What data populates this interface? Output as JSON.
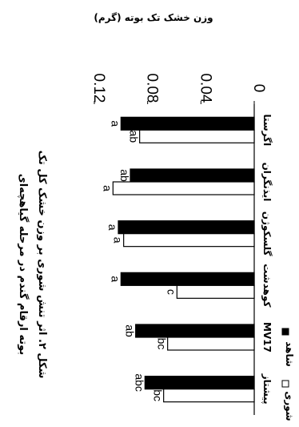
{
  "figure": {
    "caption_line1": "شکل ۲. اثر تنش شوری بر وزن خشک کل تک",
    "caption_line2": "بوته ارقام گندم در مرحله گیاهچه‌ای"
  },
  "chart_data": {
    "type": "bar",
    "ylabel": "وزن خشک تک بوته (گرم)",
    "ylim": [
      0,
      0.12
    ],
    "yticks": [
      "0",
      "0.04",
      "0.08",
      "0.12"
    ],
    "ytick_values": [
      0,
      0.04,
      0.08,
      0.12
    ],
    "categories": [
      "اگرستا",
      "ایذنگران",
      "گلسکوژن",
      "کوهدشت",
      "MV17",
      "پیشتاز"
    ],
    "series": [
      {
        "name": "شاهد",
        "fill": "#000000",
        "values": [
          0.1,
          0.093,
          0.102,
          0.1,
          0.089,
          0.082
        ],
        "letters": [
          "a",
          "ab",
          "a",
          "a",
          "ab",
          "abc"
        ]
      },
      {
        "name": "شوری",
        "fill": "#ffffff",
        "values": [
          0.086,
          0.106,
          0.098,
          0.058,
          0.065,
          0.068
        ],
        "letters": [
          "ab",
          "a",
          "a",
          "c",
          "bc",
          "bc"
        ]
      }
    ],
    "legend_position": "top-right",
    "grid": false,
    "bar_edge": "#000000"
  }
}
